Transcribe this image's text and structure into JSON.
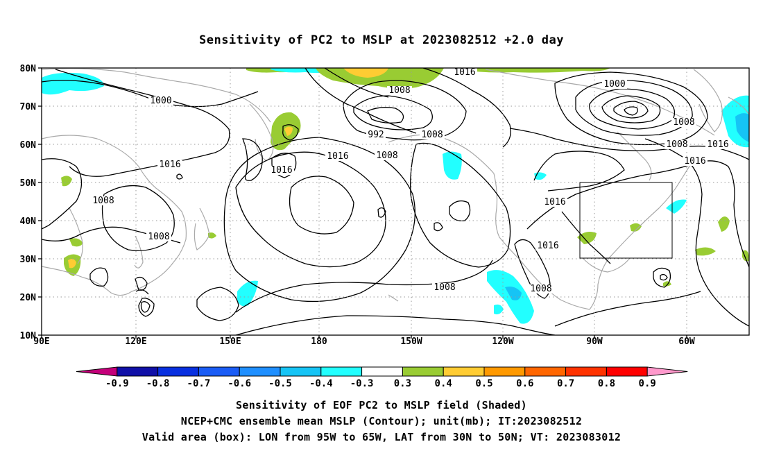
{
  "title": "Sensitivity of PC2 to MSLP at 2023082512 +2.0 day",
  "axes": {
    "lat_labels": [
      "80N",
      "70N",
      "60N",
      "50N",
      "40N",
      "30N",
      "20N",
      "10N"
    ],
    "lon_labels": [
      "90E",
      "120E",
      "150E",
      "180",
      "150W",
      "120W",
      "90W",
      "60W"
    ]
  },
  "contour_labels": [
    "1016",
    "1008",
    "1000",
    "992",
    "1008",
    "1016",
    "1016",
    "1008",
    "1016",
    "1008",
    "1000",
    "1008",
    "1016",
    "1008",
    "1008",
    "1016",
    "1016",
    "1016",
    "1008",
    "1008"
  ],
  "colorbar": {
    "labels": [
      "-0.9",
      "-0.8",
      "-0.7",
      "-0.6",
      "-0.5",
      "-0.4",
      "-0.3",
      "0.3",
      "0.4",
      "0.5",
      "0.6",
      "0.7",
      "0.8",
      "0.9"
    ],
    "colors": [
      "#c4007a",
      "#1010a8",
      "#0830e0",
      "#1a5cf5",
      "#1f8fff",
      "#16c4f5",
      "#22ffff",
      "#ffffff",
      "#99cc33",
      "#ffcc33",
      "#ff9900",
      "#ff6600",
      "#ff3300",
      "#ff0000",
      "#ff99cc"
    ]
  },
  "valid_area_box": {
    "lon_range": [
      "95W",
      "65W"
    ],
    "lat_range": [
      "30N",
      "50N"
    ]
  },
  "captions": {
    "line1": "Sensitivity of EOF PC2 to MSLP field (Shaded)",
    "line2": "NCEP+CMC ensemble mean MSLP (Contour); unit(mb); IT:2023082512",
    "line3": "Valid area (box): LON from 95W to 65W, LAT from 30N to 50N; VT: 2023083012"
  }
}
